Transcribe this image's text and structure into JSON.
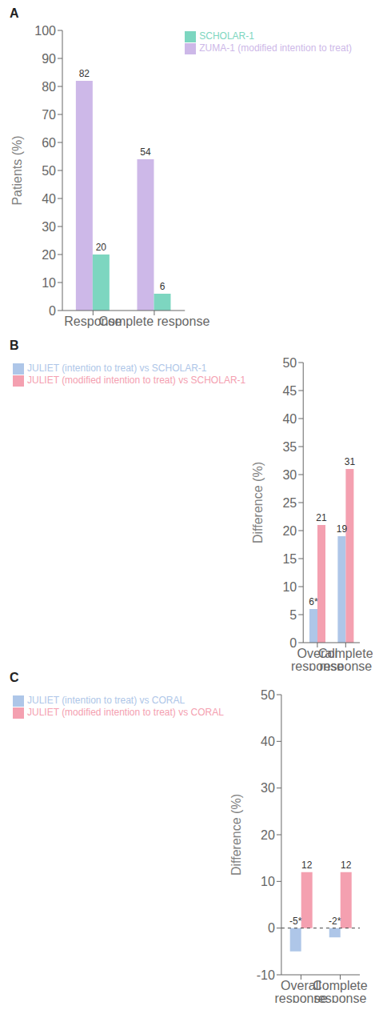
{
  "chart_data": [
    {
      "type": "bar",
      "title": "A",
      "categories": [
        "Response",
        "Complete response"
      ],
      "series": [
        {
          "name": "ZUMA-1 (modified intention to treat)",
          "color": "#cdb8e8",
          "values": [
            82,
            54
          ]
        },
        {
          "name": "SCHOLAR-1",
          "color": "#7dd6c0",
          "values": [
            20,
            6
          ]
        }
      ],
      "ylabel": "Patients (%)",
      "ylim": [
        0,
        100
      ],
      "yticks": [
        0,
        10,
        20,
        30,
        40,
        50,
        60,
        70,
        80,
        90,
        100
      ],
      "data_labels": true,
      "legend": "upper right",
      "grid": false
    },
    {
      "type": "bar",
      "title": "B",
      "categories": [
        "Overall response",
        "Complete response"
      ],
      "series": [
        {
          "name": "JULIET (intention to treat) vs SCHOLAR-1",
          "color": "#aec6e8",
          "values": [
            6,
            19
          ],
          "value_labels": [
            "6*",
            "19"
          ]
        },
        {
          "name": "JULIET (modified intention to treat) vs SCHOLAR-1",
          "color": "#f4a0b0",
          "values": [
            21,
            31
          ],
          "value_labels": [
            "21",
            "31"
          ]
        }
      ],
      "ylabel": "Difference (%)",
      "ylim": [
        0,
        50
      ],
      "yticks": [
        0,
        5,
        10,
        15,
        20,
        25,
        30,
        35,
        40,
        45,
        50
      ],
      "data_labels": true,
      "legend": "upper left",
      "grid": false
    },
    {
      "type": "bar",
      "title": "C",
      "categories": [
        "Overall response",
        "Complete response"
      ],
      "series": [
        {
          "name": "JULIET (intention to treat) vs CORAL",
          "color": "#aec6e8",
          "values": [
            -5,
            -2
          ],
          "value_labels": [
            "-5*",
            "-2*"
          ]
        },
        {
          "name": "JULIET (modified intention to treat) vs CORAL",
          "color": "#f4a0b0",
          "values": [
            12,
            12
          ],
          "value_labels": [
            "12",
            "12"
          ]
        }
      ],
      "ylabel": "Difference (%)",
      "ylim": [
        -10,
        50
      ],
      "yticks": [
        -10,
        0,
        10,
        20,
        30,
        40,
        50
      ],
      "hline": 0,
      "data_labels": true,
      "legend": "upper left",
      "grid": false
    }
  ]
}
